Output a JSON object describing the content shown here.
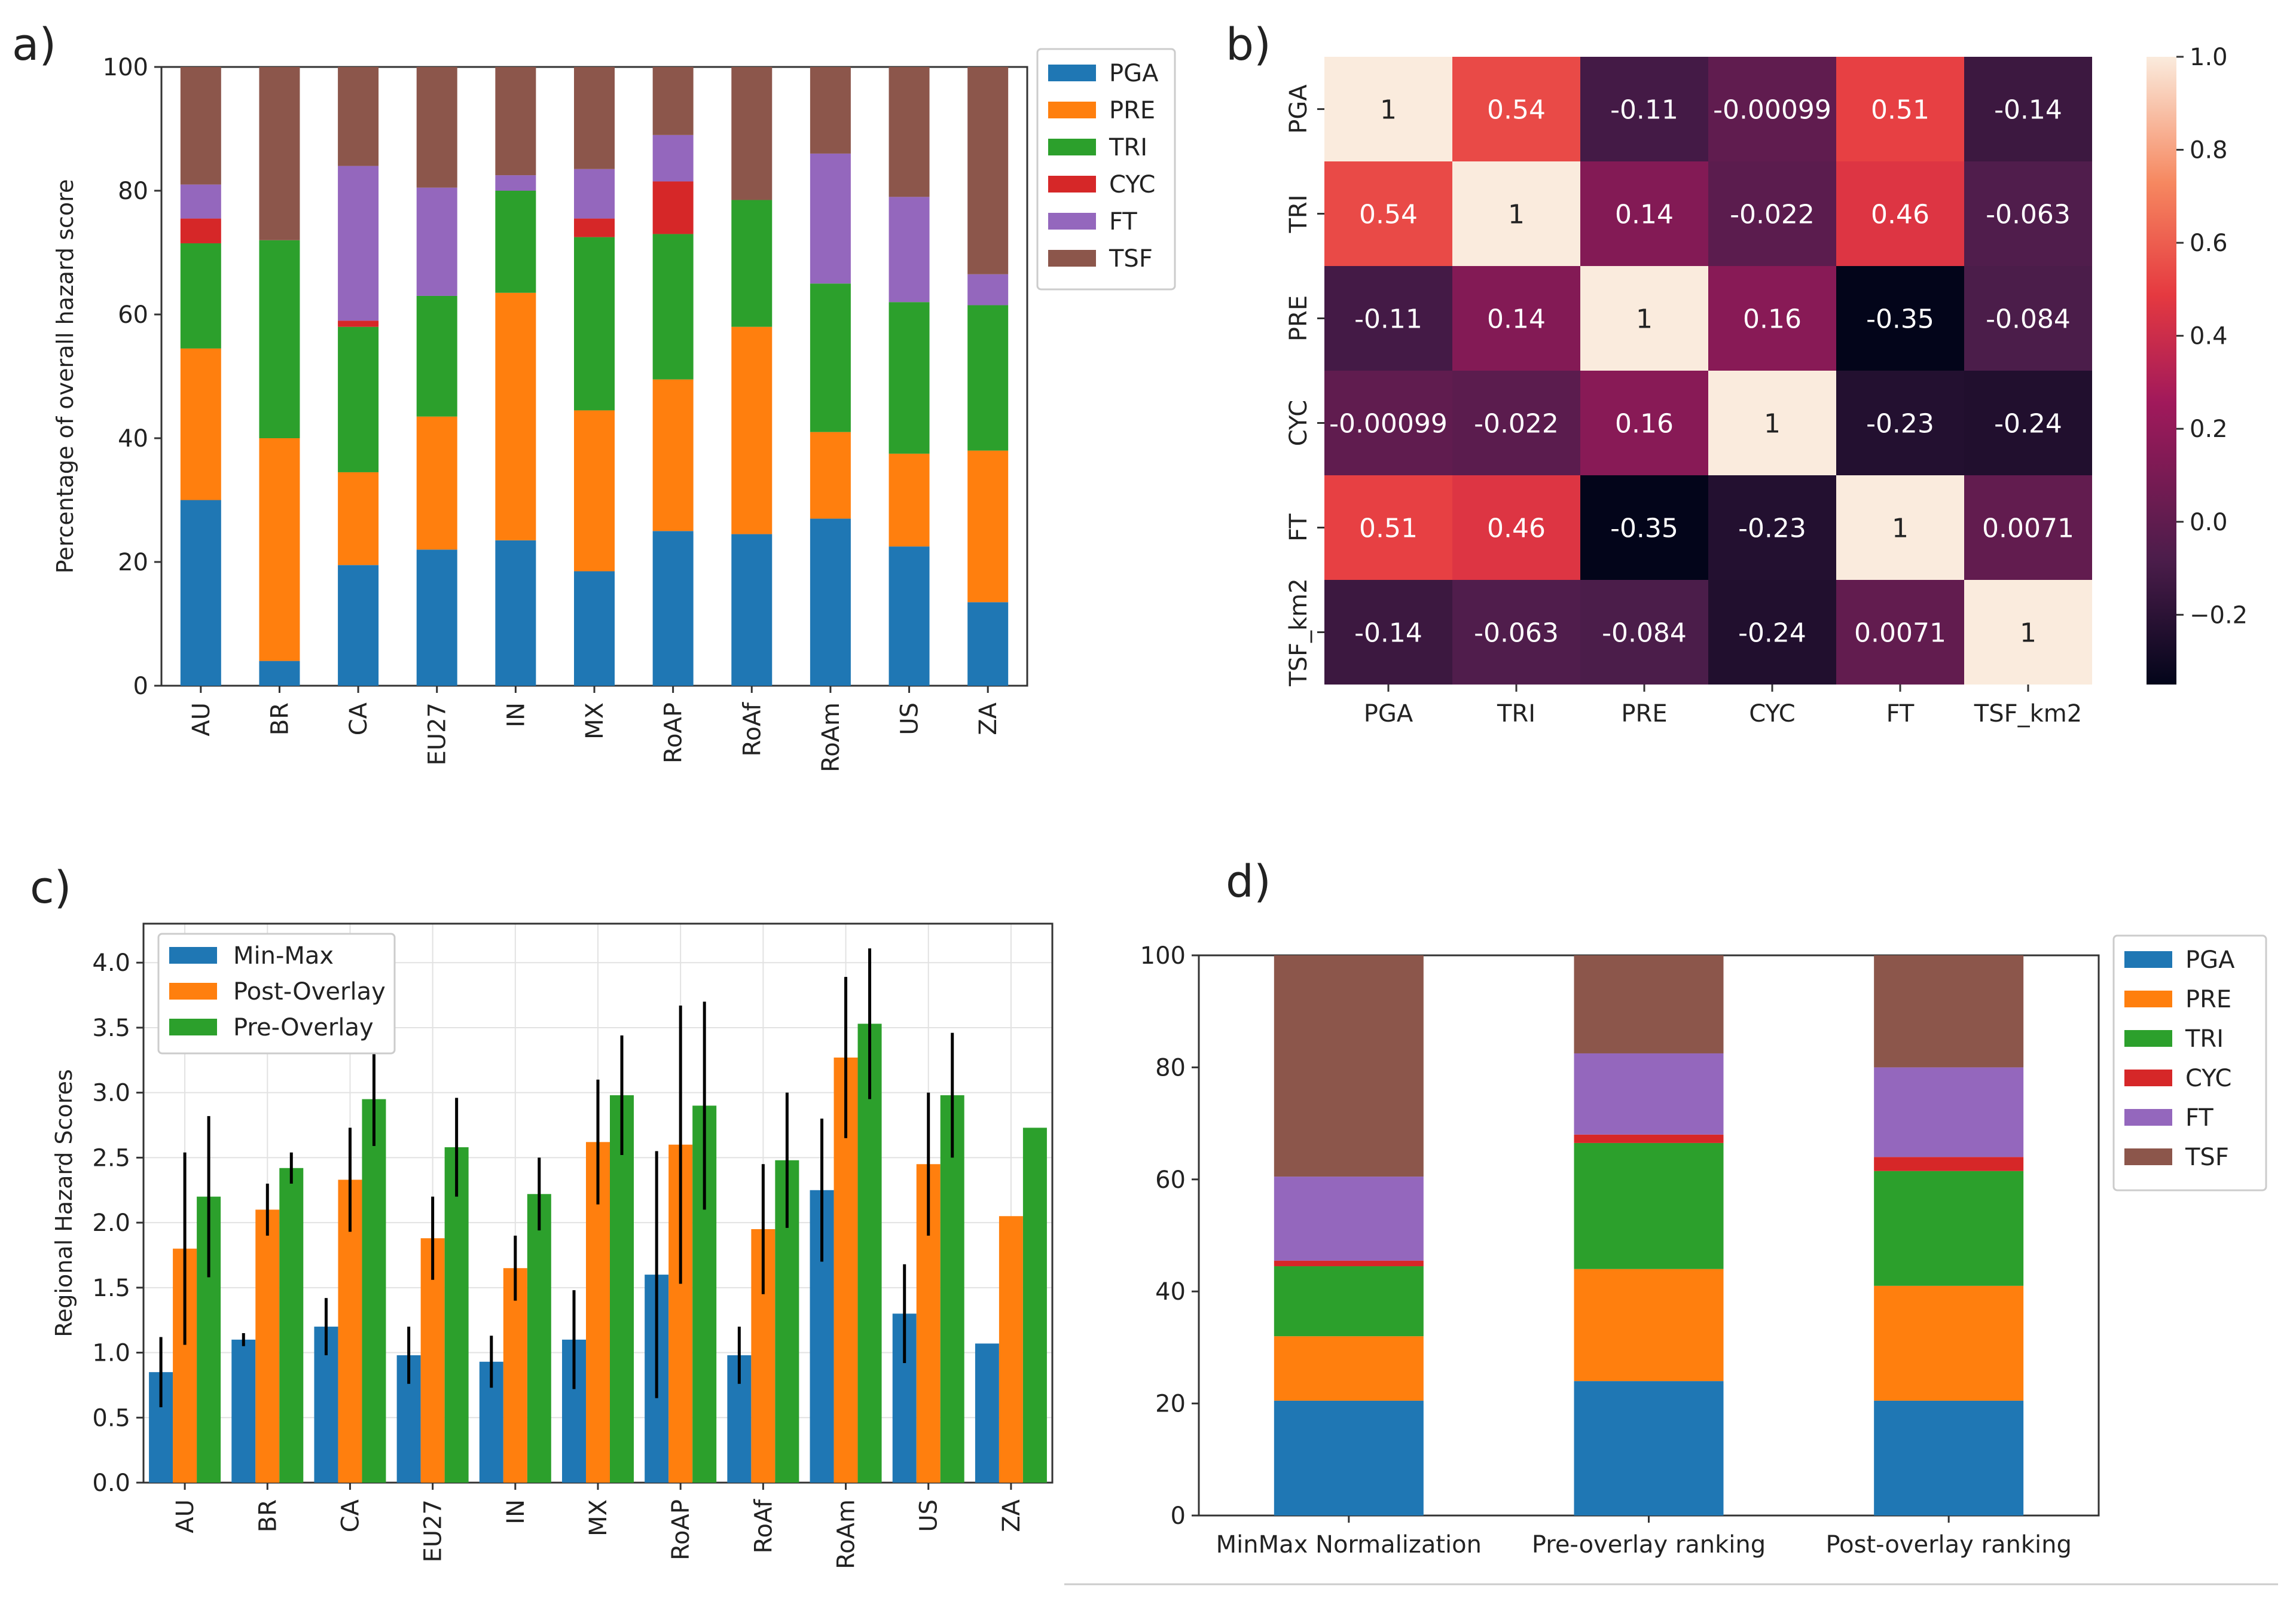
{
  "panel_labels": {
    "a": "a)",
    "b": "b)",
    "c": "c)",
    "d": "d)"
  },
  "colors": {
    "PGA": "#1f77b4",
    "PRE": "#ff7f0e",
    "TRI": "#2ca02c",
    "CYC": "#d62728",
    "FT": "#9467bd",
    "TSF": "#8c564b",
    "Min-Max": "#1f77b4",
    "Post-Overlay": "#ff7f0e",
    "Pre-Overlay": "#2ca02c"
  },
  "chart_data": [
    {
      "id": "a",
      "type": "bar",
      "stacked": true,
      "title": "",
      "xlabel": "",
      "ylabel": "Percentage of overall hazard score",
      "ylim": [
        0,
        100
      ],
      "yticks": [
        0,
        20,
        40,
        60,
        80,
        100
      ],
      "legend_position": "top-right",
      "categories": [
        "AU",
        "BR",
        "CA",
        "EU27",
        "IN",
        "MX",
        "RoAP",
        "RoAf",
        "RoAm",
        "US",
        "ZA"
      ],
      "series": [
        {
          "name": "PGA",
          "values": [
            30,
            4,
            19.5,
            22,
            23.5,
            18.5,
            25,
            24.5,
            27,
            22.5,
            13.5
          ]
        },
        {
          "name": "PRE",
          "values": [
            24.5,
            36,
            15,
            21.5,
            40,
            26,
            24.5,
            33.5,
            14,
            15,
            24.5
          ]
        },
        {
          "name": "TRI",
          "values": [
            17,
            32,
            23.5,
            19.5,
            16.5,
            28,
            23.5,
            20.5,
            24,
            24.5,
            23.5
          ]
        },
        {
          "name": "CYC",
          "values": [
            4,
            0,
            1,
            0,
            0,
            3,
            8.5,
            0,
            0,
            0,
            0
          ]
        },
        {
          "name": "FT",
          "values": [
            5.5,
            0,
            25,
            17.5,
            2.5,
            8,
            7.5,
            0,
            21,
            17,
            5
          ]
        },
        {
          "name": "TSF",
          "values": [
            19,
            28,
            16,
            19.5,
            17.5,
            16.5,
            11,
            21.5,
            14,
            21,
            33.5
          ]
        }
      ]
    },
    {
      "id": "b",
      "type": "heatmap",
      "rows": [
        "PGA",
        "TRI",
        "PRE",
        "CYC",
        "FT",
        "TSF_km2"
      ],
      "columns": [
        "PGA",
        "TRI",
        "PRE",
        "CYC",
        "FT",
        "TSF_km2"
      ],
      "values": [
        [
          1,
          0.54,
          -0.11,
          -0.00099,
          0.51,
          -0.14
        ],
        [
          0.54,
          1,
          0.14,
          -0.022,
          0.46,
          -0.063
        ],
        [
          -0.11,
          0.14,
          1,
          0.16,
          -0.35,
          -0.084
        ],
        [
          -0.00099,
          -0.022,
          0.16,
          1,
          -0.23,
          -0.24
        ],
        [
          0.51,
          0.46,
          -0.35,
          -0.23,
          1,
          0.0071
        ],
        [
          -0.14,
          -0.063,
          -0.084,
          -0.24,
          0.0071,
          1
        ]
      ],
      "labels": [
        [
          "1",
          "0.54",
          "-0.11",
          "-0.00099",
          "0.51",
          "-0.14"
        ],
        [
          "0.54",
          "1",
          "0.14",
          "-0.022",
          "0.46",
          "-0.063"
        ],
        [
          "-0.11",
          "0.14",
          "1",
          "0.16",
          "-0.35",
          "-0.084"
        ],
        [
          "-0.00099",
          "-0.022",
          "0.16",
          "1",
          "-0.23",
          "-0.24"
        ],
        [
          "0.51",
          "0.46",
          "-0.35",
          "-0.23",
          "1",
          "0.0071"
        ],
        [
          "-0.14",
          "-0.063",
          "-0.084",
          "-0.24",
          "0.0071",
          "1"
        ]
      ],
      "colorbar": {
        "range": [
          -0.35,
          1.0
        ],
        "ticks": [
          -0.2,
          0.0,
          0.2,
          0.4,
          0.6,
          0.8,
          1.0
        ],
        "tick_labels": [
          "−0.2",
          "0.0",
          "0.2",
          "0.4",
          "0.6",
          "0.8",
          "1.0"
        ]
      }
    },
    {
      "id": "c",
      "type": "bar",
      "grouped": true,
      "title": "",
      "xlabel": "",
      "ylabel": "Regional Hazard Scores",
      "ylim": [
        0,
        4.3
      ],
      "yticks": [
        0.0,
        0.5,
        1.0,
        1.5,
        2.0,
        2.5,
        3.0,
        3.5,
        4.0
      ],
      "ytick_labels": [
        "0.0",
        "0.5",
        "1.0",
        "1.5",
        "2.0",
        "2.5",
        "3.0",
        "3.5",
        "4.0"
      ],
      "grid": true,
      "legend_position": "top-left",
      "categories": [
        "AU",
        "BR",
        "CA",
        "EU27",
        "IN",
        "MX",
        "RoAP",
        "RoAf",
        "RoAm",
        "US",
        "ZA"
      ],
      "series": [
        {
          "name": "Min-Max",
          "values": [
            0.85,
            1.1,
            1.2,
            0.98,
            0.93,
            1.1,
            1.6,
            0.98,
            2.25,
            1.3,
            1.07
          ],
          "errors": [
            0.27,
            0.05,
            0.22,
            0.22,
            0.2,
            0.38,
            0.95,
            0.22,
            0.55,
            0.38,
            0
          ]
        },
        {
          "name": "Post-Overlay",
          "values": [
            1.8,
            2.1,
            2.33,
            1.88,
            1.65,
            2.62,
            2.6,
            1.95,
            3.27,
            2.45,
            2.05
          ],
          "errors": [
            0.74,
            0.2,
            0.4,
            0.32,
            0.25,
            0.48,
            1.07,
            0.5,
            0.62,
            0.55,
            0
          ]
        },
        {
          "name": "Pre-Overlay",
          "values": [
            2.2,
            2.42,
            2.95,
            2.58,
            2.22,
            2.98,
            2.9,
            2.48,
            3.53,
            2.98,
            2.73
          ],
          "errors": [
            0.62,
            0.12,
            0.36,
            0.38,
            0.28,
            0.46,
            0.8,
            0.52,
            0.58,
            0.48,
            0
          ]
        }
      ]
    },
    {
      "id": "d",
      "type": "bar",
      "stacked": true,
      "title": "",
      "xlabel": "",
      "ylabel": "",
      "ylim": [
        0,
        100
      ],
      "yticks": [
        0,
        20,
        40,
        60,
        80,
        100
      ],
      "legend_position": "right",
      "categories": [
        "MinMax Normalization",
        "Pre-overlay ranking",
        "Post-overlay ranking"
      ],
      "series": [
        {
          "name": "PGA",
          "values": [
            20.5,
            24,
            20.5
          ]
        },
        {
          "name": "PRE",
          "values": [
            11.5,
            20,
            20.5
          ]
        },
        {
          "name": "TRI",
          "values": [
            12.5,
            22.5,
            20.5
          ]
        },
        {
          "name": "CYC",
          "values": [
            1,
            1.5,
            2.5
          ]
        },
        {
          "name": "FT",
          "values": [
            15,
            14.5,
            16
          ]
        },
        {
          "name": "TSF",
          "values": [
            39.5,
            17.5,
            20
          ]
        }
      ]
    }
  ]
}
